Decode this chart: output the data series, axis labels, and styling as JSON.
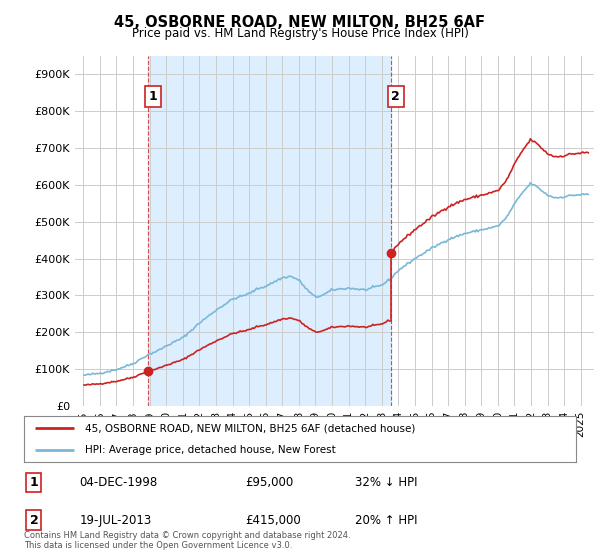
{
  "title": "45, OSBORNE ROAD, NEW MILTON, BH25 6AF",
  "subtitle": "Price paid vs. HM Land Registry's House Price Index (HPI)",
  "ylim": [
    0,
    950000
  ],
  "yticks": [
    0,
    100000,
    200000,
    300000,
    400000,
    500000,
    600000,
    700000,
    800000,
    900000
  ],
  "ytick_labels": [
    "£0",
    "£100K",
    "£200K",
    "£300K",
    "£400K",
    "£500K",
    "£600K",
    "£700K",
    "£800K",
    "£900K"
  ],
  "hpi_color": "#7ab8d9",
  "price_color": "#cc2222",
  "marker_color": "#cc2222",
  "shade_color": "#ddeeff",
  "background_color": "#ffffff",
  "grid_color": "#cccccc",
  "transaction1": {
    "date": "04-DEC-1998",
    "price": 95000,
    "hpi_diff": "32% ↓ HPI",
    "label": "1"
  },
  "transaction2": {
    "date": "19-JUL-2013",
    "price": 415000,
    "hpi_diff": "20% ↑ HPI",
    "label": "2"
  },
  "legend_label1": "45, OSBORNE ROAD, NEW MILTON, BH25 6AF (detached house)",
  "legend_label2": "HPI: Average price, detached house, New Forest",
  "footnote": "Contains HM Land Registry data © Crown copyright and database right 2024.\nThis data is licensed under the Open Government Licence v3.0.",
  "sale_x1": 1998.92,
  "sale_y1": 95000,
  "sale_x2": 2013.54,
  "sale_y2": 415000,
  "xlim_left": 1994.5,
  "xlim_right": 2025.8
}
